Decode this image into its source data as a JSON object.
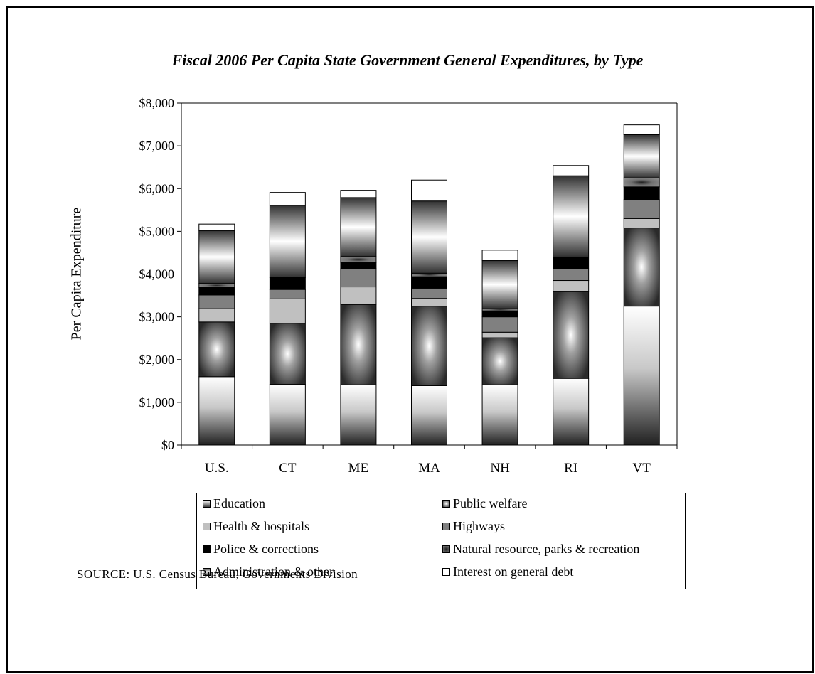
{
  "chart_data": {
    "type": "bar",
    "stacked": true,
    "title": "Fiscal 2006 Per Capita State Government General Expenditures, by Type",
    "ylabel": "Per Capita Expenditure",
    "xlabel": "",
    "ylim": [
      0,
      8000
    ],
    "yticks": [
      0,
      1000,
      2000,
      3000,
      4000,
      5000,
      6000,
      7000,
      8000
    ],
    "ytick_labels": [
      "$0",
      "$1,000",
      "$2,000",
      "$3,000",
      "$4,000",
      "$5,000",
      "$6,000",
      "$7,000",
      "$8,000"
    ],
    "categories": [
      "U.S.",
      "CT",
      "ME",
      "MA",
      "NH",
      "RI",
      "VT"
    ],
    "legend_position": "bottom",
    "grid": false,
    "series": [
      {
        "name": "Education",
        "key": "education",
        "values": [
          1600,
          1420,
          1410,
          1390,
          1410,
          1560,
          3250
        ]
      },
      {
        "name": "Public welfare",
        "key": "public_welfare",
        "values": [
          1280,
          1430,
          1880,
          1860,
          1100,
          2030,
          1830
        ]
      },
      {
        "name": "Health & hospitals",
        "key": "health",
        "values": [
          310,
          570,
          410,
          180,
          130,
          260,
          220
        ]
      },
      {
        "name": "Highways",
        "key": "highways",
        "values": [
          320,
          220,
          430,
          240,
          360,
          270,
          440
        ]
      },
      {
        "name": "Police & corrections",
        "key": "police",
        "values": [
          180,
          280,
          140,
          270,
          140,
          280,
          300
        ]
      },
      {
        "name": "Natural resource, parks & recreation",
        "key": "natural",
        "values": [
          90,
          0,
          140,
          80,
          50,
          0,
          210
        ]
      },
      {
        "name": "Administration & other",
        "key": "admin",
        "values": [
          1240,
          1690,
          1380,
          1690,
          1130,
          1900,
          1010
        ]
      },
      {
        "name": "Interest on general debt",
        "key": "interest",
        "values": [
          150,
          300,
          170,
          490,
          240,
          240,
          230
        ]
      }
    ]
  },
  "colors": {
    "education": "#909090",
    "public_welfare": "#5a5a5a",
    "health": "#c0c0c0",
    "highways": "#808080",
    "police": "#000000",
    "natural": "#606060",
    "admin": "#5c5c5c",
    "interest": "#ffffff"
  },
  "source": "SOURCE:  U.S. Census Bureau, Governments Division"
}
